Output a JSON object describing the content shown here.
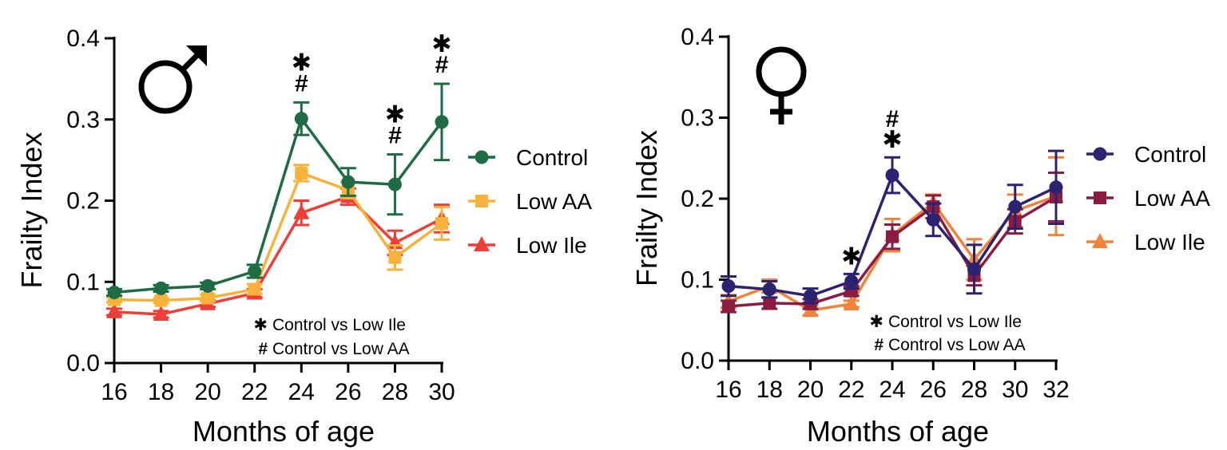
{
  "chart_data": [
    {
      "type": "line",
      "panel": "male",
      "symbol": "male-symbol",
      "xlabel": "Months of age",
      "ylabel": "Frailty Index",
      "xlim": [
        16,
        30
      ],
      "ylim": [
        0,
        0.4
      ],
      "x_ticks": [
        "16",
        "18",
        "20",
        "22",
        "24",
        "26",
        "28",
        "30"
      ],
      "y_ticks": [
        "0.0",
        "0.1",
        "0.2",
        "0.3",
        "0.4"
      ],
      "legend_position": "right",
      "x": [
        16,
        18,
        20,
        22,
        24,
        26,
        28,
        30
      ],
      "series": [
        {
          "name": "Control",
          "marker": "circle",
          "color": "#1e6b45",
          "values": [
            0.087,
            0.092,
            0.095,
            0.113,
            0.301,
            0.223,
            0.22,
            0.297
          ],
          "errors": [
            0.004,
            0.004,
            0.004,
            0.008,
            0.02,
            0.017,
            0.037,
            0.047
          ]
        },
        {
          "name": "Low AA",
          "marker": "square",
          "color": "#f7b23b",
          "values": [
            0.078,
            0.077,
            0.08,
            0.091,
            0.234,
            0.213,
            0.13,
            0.172
          ],
          "errors": [
            0.003,
            0.003,
            0.004,
            0.006,
            0.01,
            0.01,
            0.015,
            0.02
          ]
        },
        {
          "name": "Low Ile",
          "marker": "triangle",
          "color": "#ed3f37",
          "values": [
            0.063,
            0.06,
            0.073,
            0.086,
            0.185,
            0.205,
            0.148,
            0.178
          ],
          "errors": [
            0.004,
            0.004,
            0.004,
            0.005,
            0.015,
            0.01,
            0.015,
            0.017
          ]
        }
      ],
      "significance": [
        {
          "x": 24,
          "marks": [
            "✱",
            "#"
          ]
        },
        {
          "x": 28,
          "marks": [
            "✱",
            "#"
          ]
        },
        {
          "x": 30,
          "marks": [
            "✱",
            "#"
          ]
        }
      ],
      "notes": [
        {
          "symbol": "✱",
          "text": "Control vs Low Ile"
        },
        {
          "symbol": "#",
          "text": "Control vs Low AA"
        }
      ]
    },
    {
      "type": "line",
      "panel": "female",
      "symbol": "female-symbol",
      "xlabel": "Months of age",
      "ylabel": "Frailty Index",
      "xlim": [
        16,
        32
      ],
      "ylim": [
        0,
        0.4
      ],
      "x_ticks": [
        "16",
        "18",
        "20",
        "22",
        "24",
        "26",
        "28",
        "30",
        "32"
      ],
      "y_ticks": [
        "0.0",
        "0.1",
        "0.2",
        "0.3",
        "0.4"
      ],
      "legend_position": "right",
      "x": [
        16,
        18,
        20,
        22,
        24,
        26,
        28,
        30,
        32
      ],
      "series": [
        {
          "name": "Control",
          "marker": "circle",
          "color": "#2b2370",
          "values": [
            0.092,
            0.088,
            0.08,
            0.098,
            0.229,
            0.174,
            0.113,
            0.19,
            0.214
          ],
          "errors": [
            0.012,
            0.01,
            0.009,
            0.009,
            0.022,
            0.02,
            0.03,
            0.027,
            0.045
          ]
        },
        {
          "name": "Low AA",
          "marker": "square",
          "color": "#8a1c44",
          "values": [
            0.067,
            0.071,
            0.07,
            0.086,
            0.153,
            0.19,
            0.105,
            0.172,
            0.202
          ],
          "errors": [
            0.007,
            0.007,
            0.006,
            0.006,
            0.015,
            0.014,
            0.012,
            0.015,
            0.03
          ]
        },
        {
          "name": "Low Ile",
          "marker": "triangle",
          "color": "#f0843a",
          "values": [
            0.073,
            0.092,
            0.062,
            0.07,
            0.155,
            0.195,
            0.125,
            0.185,
            0.203
          ],
          "errors": [
            0.008,
            0.008,
            0.006,
            0.004,
            0.02,
            0.01,
            0.025,
            0.02,
            0.048
          ]
        }
      ],
      "significance": [
        {
          "x": 22,
          "marks": [
            "✱"
          ]
        },
        {
          "x": 24,
          "marks": [
            "#",
            "✱"
          ]
        }
      ],
      "notes": [
        {
          "symbol": "✱",
          "text": "Control vs Low Ile"
        },
        {
          "symbol": "#",
          "text": "Control vs Low AA"
        }
      ]
    }
  ]
}
